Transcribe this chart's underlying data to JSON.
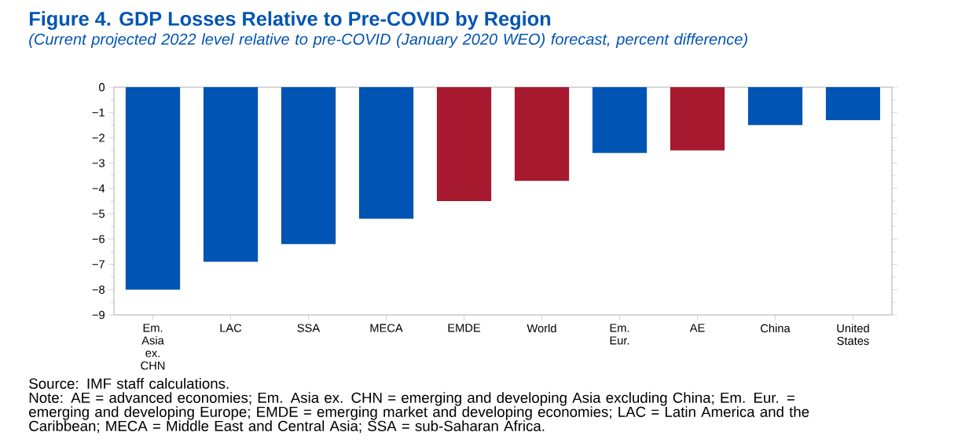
{
  "chart_data": {
    "type": "bar",
    "title": "Figure 4.  GDP Losses Relative to Pre-COVID by Region",
    "subtitle": "(Current projected 2022 level relative to pre-COVID (January 2020 WEO) forecast, percent difference)",
    "categories": [
      "Em. Asia ex. CHN",
      "LAC",
      "SSA",
      "MECA",
      "EMDE",
      "World",
      "Em. Eur.",
      "AE",
      "China",
      "United States"
    ],
    "values": [
      -8.0,
      -6.9,
      -6.2,
      -5.2,
      -4.5,
      -3.7,
      -2.6,
      -2.5,
      -1.5,
      -1.3
    ],
    "colors": [
      "#0054b4",
      "#0054b4",
      "#0054b4",
      "#0054b4",
      "#a6192e",
      "#a6192e",
      "#0054b4",
      "#a6192e",
      "#0054b4",
      "#0054b4"
    ],
    "ylim": [
      -9,
      0
    ],
    "yticks": [
      0,
      {
        "value": -1,
        "label": "−1"
      },
      {
        "value": -2,
        "label": "−2"
      },
      {
        "value": -3,
        "label": "−3"
      },
      {
        "value": -4,
        "label": "−4"
      },
      {
        "value": -5,
        "label": "−5"
      },
      {
        "value": -6,
        "label": "−6"
      },
      {
        "value": -7,
        "label": "−7"
      },
      {
        "value": -8,
        "label": "−8"
      },
      {
        "value": -9,
        "label": "−9"
      }
    ],
    "grid": false,
    "annotations": [
      "Source: IMF staff calculations.",
      "Note: AE = advanced economies; Em. Asia ex. CHN = emerging and developing Asia excluding China; Em. Eur. = emerging and developing Europe; EMDE = emerging market and developing economies; LAC = Latin America and the Caribbean; MECA = Middle East and Central Asia; SSA = sub-Saharan Africa."
    ]
  }
}
